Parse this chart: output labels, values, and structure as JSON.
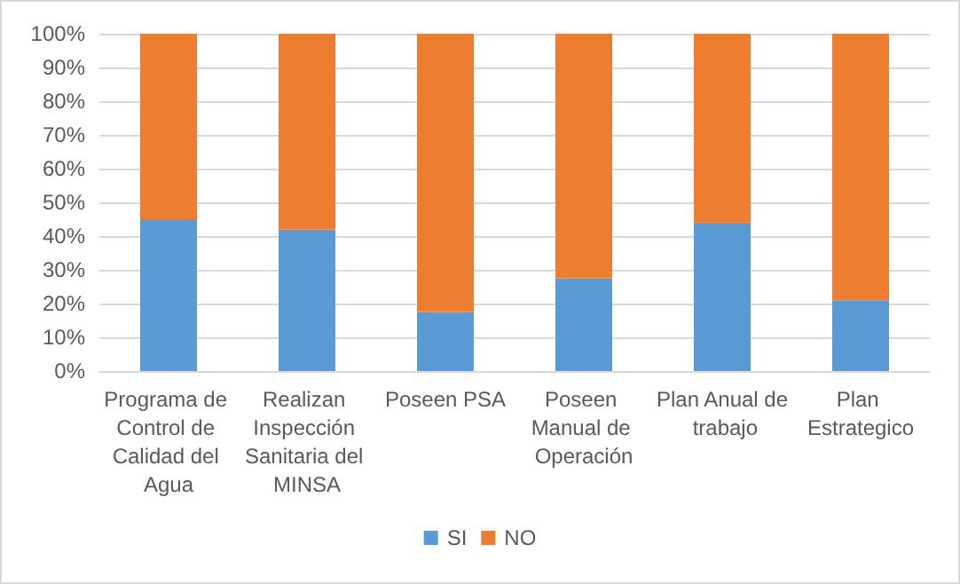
{
  "chart_data": {
    "type": "bar",
    "stacked": true,
    "categories": [
      "Programa de Control de Calidad del Agua",
      "Realizan Inspección Sanitaria del MINSA",
      "Poseen PSA",
      "Poseen Manual de Operación",
      "Plan Anual de trabajo",
      "Plan Estrategico"
    ],
    "series": [
      {
        "name": "SI",
        "color": "#5b9bd5",
        "values": [
          45,
          42,
          17.5,
          27.5,
          44,
          21
        ]
      },
      {
        "name": "NO",
        "color": "#ed7d31",
        "values": [
          55,
          58,
          82.5,
          72.5,
          56,
          79
        ]
      }
    ],
    "ylim": [
      0,
      100
    ],
    "yticks": [
      {
        "value": 0,
        "label": "0%"
      },
      {
        "value": 10,
        "label": "10%"
      },
      {
        "value": 20,
        "label": "20%"
      },
      {
        "value": 30,
        "label": "30%"
      },
      {
        "value": 40,
        "label": "40%"
      },
      {
        "value": 50,
        "label": "50%"
      },
      {
        "value": 60,
        "label": "60%"
      },
      {
        "value": 70,
        "label": "70%"
      },
      {
        "value": 80,
        "label": "80%"
      },
      {
        "value": 90,
        "label": "90%"
      },
      {
        "value": 100,
        "label": "100%"
      }
    ],
    "grid": "y",
    "legend": "bottom"
  }
}
